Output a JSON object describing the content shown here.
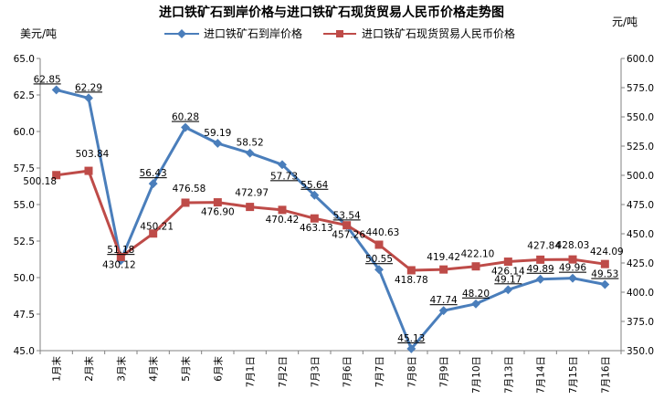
{
  "chart_data": {
    "type": "line",
    "title": "进口铁矿石到岸价格与进口铁矿石现货贸易人民币价格走势图",
    "ylabel_left": "美元/吨",
    "ylabel_right": "元/吨",
    "categories": [
      "1月末",
      "2月末",
      "3月末",
      "4月末",
      "5月末",
      "6月末",
      "7月1日",
      "7月2日",
      "7月3日",
      "7月6日",
      "7月7日",
      "7月8日",
      "7月9日",
      "7月10日",
      "7月13日",
      "7月14日",
      "7月15日",
      "7月16日"
    ],
    "ylim_left": [
      45.0,
      65.0
    ],
    "yticks_left": [
      "45.0",
      "47.5",
      "50.0",
      "52.5",
      "55.0",
      "57.5",
      "60.0",
      "62.5",
      "65.0"
    ],
    "ylim_right": [
      350.0,
      600.0
    ],
    "yticks_right": [
      "350.0",
      "375.0",
      "400.0",
      "425.0",
      "450.0",
      "475.0",
      "500.0",
      "525.0",
      "550.0",
      "575.0",
      "600.0"
    ],
    "legend_position": "top",
    "series": [
      {
        "name": "进口铁矿石到岸价格",
        "axis": "left",
        "color": "#4a7ebb",
        "marker": "diamond",
        "values": [
          62.85,
          62.29,
          51.18,
          56.43,
          60.28,
          59.19,
          58.52,
          57.73,
          55.64,
          53.54,
          50.55,
          45.13,
          47.74,
          48.2,
          49.17,
          49.89,
          49.96,
          49.53
        ],
        "labels": [
          "62.85",
          "62.29",
          "51.18",
          "56.43",
          "60.28",
          "59.19",
          "58.52",
          "57.73",
          "55.64",
          "53.54",
          "50.55",
          "45.13",
          "47.74",
          "48.20",
          "49.17",
          "49.89",
          "49.96",
          "49.53"
        ]
      },
      {
        "name": "进口铁矿石现货贸易人民币价格",
        "axis": "right",
        "color": "#be4b48",
        "marker": "square",
        "values": [
          500.18,
          503.84,
          430.12,
          450.21,
          476.58,
          476.9,
          472.97,
          470.42,
          463.13,
          457.26,
          440.63,
          418.78,
          419.42,
          422.1,
          426.14,
          427.84,
          428.03,
          424.09
        ],
        "labels": [
          "500.18",
          "503.84",
          "430.12",
          "450.21",
          "476.58",
          "476.90",
          "472.97",
          "470.42",
          "463.13",
          "457.26",
          "440.63",
          "418.78",
          "419.42",
          "422.10",
          "426.14",
          "427.84",
          "428.03",
          "424.09"
        ]
      }
    ]
  }
}
